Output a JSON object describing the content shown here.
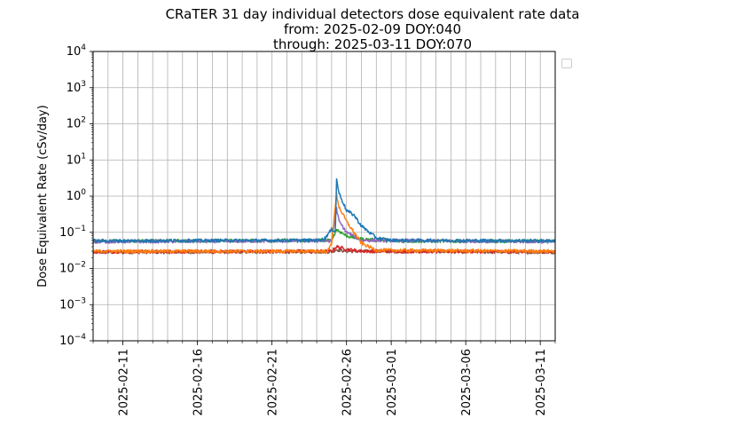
{
  "chart_data": {
    "type": "line",
    "title_lines": [
      "CRaTER 31 day individual detectors dose equivalent rate data",
      "from: 2025-02-09 DOY:040",
      "through: 2025-03-11 DOY:070"
    ],
    "xlabel": "",
    "ylabel": "Dose Equivalent Rate (cSv/day)",
    "yscale": "log",
    "ylim": [
      0.0001,
      10000
    ],
    "y_ticks": [
      {
        "value": 0.0001,
        "base": "10",
        "exp": "−4"
      },
      {
        "value": 0.001,
        "base": "10",
        "exp": "−3"
      },
      {
        "value": 0.01,
        "base": "10",
        "exp": "−2"
      },
      {
        "value": 0.1,
        "base": "10",
        "exp": "−1"
      },
      {
        "value": 1,
        "base": "10",
        "exp": "0"
      },
      {
        "value": 10,
        "base": "10",
        "exp": "1"
      },
      {
        "value": 100,
        "base": "10",
        "exp": "2"
      },
      {
        "value": 1000,
        "base": "10",
        "exp": "3"
      },
      {
        "value": 10000,
        "base": "10",
        "exp": "4"
      }
    ],
    "xlim": [
      "2025-02-09",
      "2025-03-12"
    ],
    "x_tick_labels": [
      "2025-02-11",
      "2025-02-16",
      "2025-02-21",
      "2025-02-26",
      "2025-03-01",
      "2025-03-06",
      "2025-03-11"
    ],
    "grid": true,
    "legend": "top-right outside, empty",
    "series": [
      {
        "color": "#1f77b4",
        "baseline": 0.058,
        "points": [
          [
            "2025-02-09",
            0.058
          ],
          [
            "2025-02-24",
            0.06
          ],
          [
            "2025-02-24T12",
            0.065
          ],
          [
            "2025-02-25",
            0.12
          ],
          [
            "2025-02-25T06",
            0.11
          ],
          [
            "2025-02-25T08",
            2.9
          ],
          [
            "2025-02-25T12",
            1.2
          ],
          [
            "2025-02-25T18",
            0.7
          ],
          [
            "2025-02-26",
            0.4
          ],
          [
            "2025-02-26T12",
            0.3
          ],
          [
            "2025-02-27",
            0.15
          ],
          [
            "2025-02-28",
            0.07
          ],
          [
            "2025-03-01",
            0.06
          ],
          [
            "2025-03-12",
            0.058
          ]
        ]
      },
      {
        "color": "#ff7f0e",
        "baseline": 0.03,
        "points": [
          [
            "2025-02-09",
            0.03
          ],
          [
            "2025-02-24T18",
            0.03
          ],
          [
            "2025-02-25",
            0.05
          ],
          [
            "2025-02-25T08",
            1.1
          ],
          [
            "2025-02-25T12",
            0.5
          ],
          [
            "2025-02-26",
            0.2
          ],
          [
            "2025-02-26T12",
            0.1
          ],
          [
            "2025-02-27",
            0.05
          ],
          [
            "2025-02-28",
            0.032
          ],
          [
            "2025-03-12",
            0.03
          ]
        ]
      },
      {
        "color": "#2ca02c",
        "baseline": 0.057,
        "points": [
          [
            "2025-02-09",
            0.057
          ],
          [
            "2025-02-25",
            0.06
          ],
          [
            "2025-02-25T08",
            0.12
          ],
          [
            "2025-02-26",
            0.08
          ],
          [
            "2025-02-27",
            0.065
          ],
          [
            "2025-03-01",
            0.057
          ],
          [
            "2025-03-12",
            0.057
          ]
        ]
      },
      {
        "color": "#d62728",
        "baseline": 0.029,
        "points": [
          [
            "2025-02-09",
            0.029
          ],
          [
            "2025-02-25",
            0.03
          ],
          [
            "2025-02-25T08",
            0.04
          ],
          [
            "2025-02-26",
            0.034
          ],
          [
            "2025-02-27",
            0.03
          ],
          [
            "2025-03-12",
            0.029
          ]
        ]
      },
      {
        "color": "#9467bd",
        "baseline": 0.055,
        "points": [
          [
            "2025-02-09",
            0.055
          ],
          [
            "2025-02-25",
            0.058
          ],
          [
            "2025-02-25T08",
            0.45
          ],
          [
            "2025-02-25T12",
            0.2
          ],
          [
            "2025-02-26",
            0.1
          ],
          [
            "2025-02-27",
            0.06
          ],
          [
            "2025-03-12",
            0.055
          ]
        ]
      },
      {
        "color": "#8c564b",
        "baseline": 0.028,
        "points": [
          [
            "2025-02-09",
            0.028
          ],
          [
            "2025-02-25",
            0.029
          ],
          [
            "2025-02-25T08",
            0.033
          ],
          [
            "2025-02-26",
            0.03
          ],
          [
            "2025-03-12",
            0.028
          ]
        ]
      }
    ]
  }
}
